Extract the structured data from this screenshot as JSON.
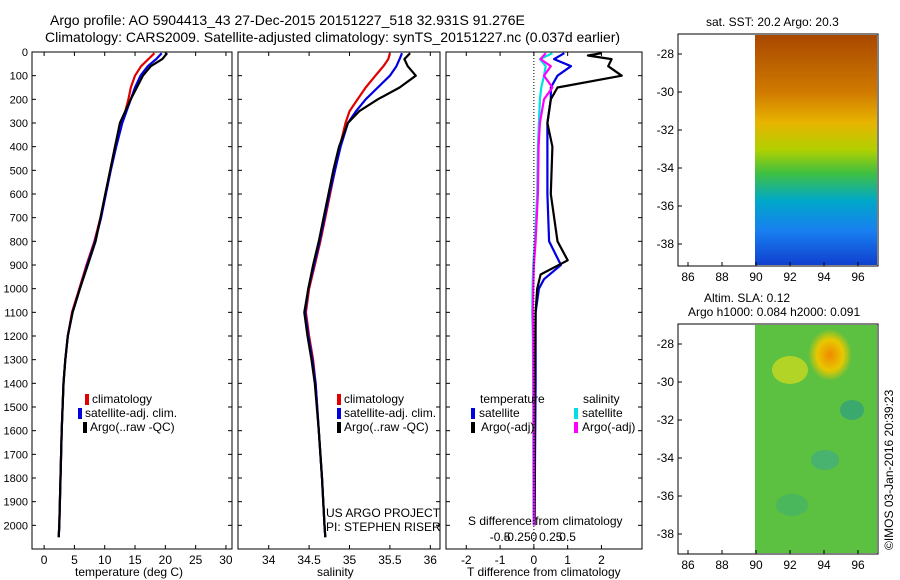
{
  "header": {
    "line1": "Argo profile: AO 5904413_43 27-Dec-2015 20151227_518 32.931S 91.276E",
    "line2": "Climatology: CARS2009. Satellite-adjusted climatology: synTS_20151227.nc (0.037d earlier)"
  },
  "colors": {
    "climatology": "#e00000",
    "satellite": "#0000e0",
    "argo": "#000000",
    "sal_satellite": "#00e0e0",
    "sal_argo": "#ff00ff"
  },
  "depth_axis": {
    "range": [
      0,
      2100
    ],
    "ticks": [
      "0",
      "100",
      "200",
      "300",
      "400",
      "500",
      "600",
      "700",
      "800",
      "900",
      "1000",
      "1100",
      "1200",
      "1300",
      "1400",
      "1500",
      "1600",
      "1700",
      "1800",
      "1900",
      "2000"
    ]
  },
  "chart_data": [
    {
      "type": "line",
      "id": "temperature",
      "xlabel": "temperature (deg C)",
      "xlim": [
        -2,
        31
      ],
      "xticks": [
        "0",
        "5",
        "10",
        "15",
        "20",
        "25",
        "30"
      ],
      "ylim": [
        0,
        2100
      ],
      "legend": [
        "climatology",
        "satellite-adj. clim.",
        "Argo(..raw -QC)"
      ],
      "series": [
        {
          "name": "climatology",
          "color": "#e00000",
          "depth": [
            5,
            30,
            60,
            100,
            150,
            200,
            250,
            300,
            400,
            500,
            600,
            700,
            800,
            900,
            1000,
            1100,
            1200,
            1300,
            1400,
            1600,
            1800,
            2000,
            2050
          ],
          "values": [
            18.2,
            17.2,
            16.0,
            15.0,
            14.3,
            13.9,
            13.4,
            12.7,
            11.7,
            10.9,
            10.1,
            9.3,
            8.3,
            7.0,
            5.8,
            4.6,
            3.9,
            3.5,
            3.2,
            2.9,
            2.7,
            2.5,
            2.4
          ]
        },
        {
          "name": "satellite-adj. clim.",
          "color": "#0000e0",
          "depth": [
            5,
            30,
            60,
            100,
            150,
            200,
            250,
            300,
            400,
            500,
            600,
            700,
            800,
            900,
            1000,
            1100,
            1200,
            1300,
            1400,
            1600,
            1800,
            2000,
            2050
          ],
          "values": [
            19.4,
            18.5,
            17.1,
            15.9,
            15.0,
            14.3,
            13.6,
            12.9,
            11.9,
            11.0,
            10.2,
            9.4,
            8.4,
            7.1,
            5.9,
            4.7,
            3.9,
            3.5,
            3.2,
            2.9,
            2.7,
            2.5,
            2.4
          ]
        },
        {
          "name": "Argo(..raw -QC)",
          "color": "#000000",
          "depth": [
            5,
            30,
            60,
            100,
            150,
            200,
            250,
            300,
            400,
            500,
            600,
            700,
            800,
            900,
            1000,
            1100,
            1200,
            1300,
            1400,
            1600,
            1800,
            2000,
            2050
          ],
          "values": [
            20.3,
            19.5,
            17.6,
            16.3,
            15.3,
            14.3,
            13.4,
            12.5,
            11.7,
            10.9,
            10.1,
            9.3,
            8.5,
            7.2,
            5.9,
            4.7,
            3.9,
            3.5,
            3.2,
            2.9,
            2.7,
            2.5,
            2.4
          ]
        }
      ]
    },
    {
      "type": "line",
      "id": "salinity",
      "xlabel": "salinity",
      "xlim": [
        33.62,
        36.12
      ],
      "xticks": [
        "34",
        "34.5",
        "35",
        "35.5",
        "36"
      ],
      "ylim": [
        0,
        2100
      ],
      "legend": [
        "climatology",
        "satellite-adj. clim.",
        "Argo(..raw -QC)"
      ],
      "annotation_project": "US ARGO PROJECT",
      "annotation_pi": "PI: STEPHEN RISER",
      "series": [
        {
          "name": "climatology",
          "color": "#e00000",
          "depth": [
            5,
            30,
            60,
            100,
            150,
            200,
            250,
            300,
            400,
            500,
            600,
            700,
            800,
            900,
            1000,
            1100,
            1200,
            1300,
            1400,
            1600,
            1800,
            2000,
            2050
          ],
          "values": [
            35.5,
            35.48,
            35.42,
            35.32,
            35.2,
            35.1,
            35.0,
            34.95,
            34.88,
            34.82,
            34.76,
            34.7,
            34.64,
            34.57,
            34.5,
            34.46,
            34.5,
            34.55,
            34.58,
            34.62,
            34.66,
            34.69,
            34.7
          ]
        },
        {
          "name": "satellite-adj. clim.",
          "color": "#0000e0",
          "depth": [
            5,
            30,
            60,
            100,
            150,
            200,
            250,
            300,
            400,
            500,
            600,
            700,
            800,
            900,
            1000,
            1100,
            1200,
            1300,
            1400,
            1600,
            1800,
            2000,
            2050
          ],
          "values": [
            35.65,
            35.62,
            35.58,
            35.5,
            35.35,
            35.2,
            35.08,
            34.98,
            34.89,
            34.82,
            34.75,
            34.69,
            34.63,
            34.56,
            34.49,
            34.45,
            34.49,
            34.54,
            34.58,
            34.62,
            34.66,
            34.69,
            34.7
          ]
        },
        {
          "name": "Argo(..raw -QC)",
          "color": "#000000",
          "depth": [
            5,
            30,
            60,
            100,
            150,
            200,
            250,
            300,
            400,
            500,
            600,
            700,
            800,
            900,
            1000,
            1100,
            1200,
            1300,
            1400,
            1600,
            1800,
            2000,
            2050
          ],
          "values": [
            35.75,
            35.68,
            35.72,
            35.82,
            35.62,
            35.35,
            35.12,
            34.98,
            34.87,
            34.8,
            34.74,
            34.68,
            34.62,
            34.55,
            34.49,
            34.44,
            34.48,
            34.53,
            34.57,
            34.62,
            34.66,
            34.69,
            34.7
          ]
        }
      ]
    },
    {
      "type": "line",
      "id": "differences",
      "xlabel": "T difference from climatology",
      "xlim": [
        -2.6,
        3.2
      ],
      "xticks": [
        "-2",
        "-1",
        "0",
        "1",
        "2"
      ],
      "s_label": "S difference from climatology",
      "s_ticks": [
        "-0.5",
        "-0.25",
        "0",
        "0.25",
        "0.5"
      ],
      "ylim": [
        0,
        2100
      ],
      "legend_temperature_title": "temperature",
      "legend_salinity_title": "salinity",
      "legend_satellite": "satellite",
      "legend_argo": "Argo(-adj)",
      "series": [
        {
          "name": "temperature satellite",
          "color": "#0000e0",
          "depth": [
            5,
            30,
            60,
            100,
            150,
            200,
            300,
            400,
            600,
            800,
            900,
            960,
            1000,
            1100,
            1400,
            2000
          ],
          "values": [
            0.9,
            0.6,
            1.1,
            0.7,
            0.5,
            0.5,
            0.4,
            0.4,
            0.4,
            0.45,
            0.8,
            0.3,
            0.15,
            0.05,
            0.05,
            0.02
          ]
        },
        {
          "name": "temperature Argo(-adj)",
          "color": "#000000",
          "depth": [
            5,
            15,
            30,
            60,
            100,
            150,
            200,
            300,
            400,
            600,
            800,
            880,
            940,
            1000,
            1100,
            1400,
            2000
          ],
          "values": [
            2.0,
            1.6,
            2.3,
            2.2,
            2.6,
            0.7,
            0.5,
            0.4,
            0.55,
            0.5,
            0.7,
            1.0,
            0.2,
            0.1,
            0.05,
            0.03,
            0.02
          ]
        },
        {
          "name": "salinity satellite",
          "color": "#00e0e0",
          "depth": [
            5,
            30,
            60,
            100,
            150,
            200,
            300,
            400,
            600,
            800,
            900,
            1000,
            1100,
            1200,
            1400,
            2000
          ],
          "values": [
            0.55,
            0.18,
            0.35,
            0.3,
            0.22,
            0.18,
            0.15,
            0.12,
            0.1,
            0.03,
            -0.02,
            -0.04,
            -0.05,
            -0.03,
            -0.02,
            -0.01
          ]
        },
        {
          "name": "salinity Argo(-adj)",
          "color": "#ff00ff",
          "depth": [
            5,
            30,
            60,
            100,
            150,
            200,
            300,
            400,
            600,
            800,
            900,
            1000,
            1100,
            1200,
            1400,
            2000
          ],
          "values": [
            0.35,
            0.2,
            0.5,
            0.3,
            0.55,
            0.3,
            0.18,
            0.14,
            0.12,
            0.05,
            0.0,
            -0.02,
            -0.03,
            -0.02,
            -0.01,
            0.0
          ]
        }
      ]
    }
  ],
  "maps": {
    "sst_title": "sat. SST: 20.2  Argo: 20.3",
    "sla_title_line1": "Altim. SLA: 0.12",
    "sla_title_line2": "Argo h1000: 0.084  h2000: 0.091",
    "lon_ticks": [
      "86",
      "88",
      "90",
      "92",
      "94",
      "96"
    ],
    "lat_ticks": [
      "-28",
      "-30",
      "-32",
      "-34",
      "-36",
      "-38"
    ]
  },
  "footer": {
    "credit": "©IMOS 03-Jan-2016 20:39:23"
  }
}
